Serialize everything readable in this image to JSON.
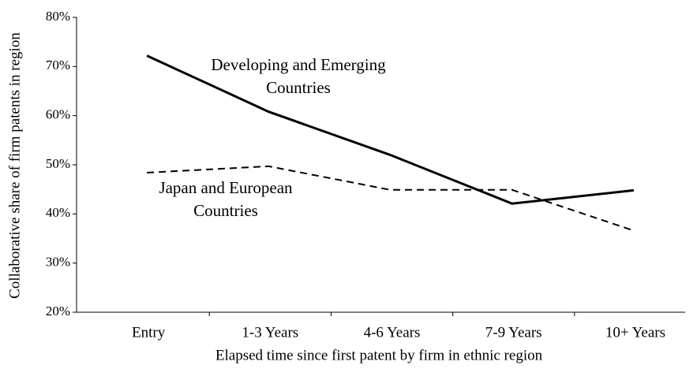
{
  "chart_data": {
    "type": "line",
    "x_label": "Elapsed time since first patent by firm in ethnic region",
    "y_label": "Collaborative share of firm patents in region",
    "categories": [
      "Entry",
      "1-3 Years",
      "4-6 Years",
      "7-9 Years",
      "10+ Years"
    ],
    "series": [
      {
        "color": "#000000",
        "dashed": false,
        "values": [
          72.2,
          60.8,
          52.0,
          42.1,
          44.8
        ]
      },
      {
        "color": "#000000",
        "dashed": true,
        "values": [
          48.4,
          49.7,
          44.9,
          44.9,
          36.6
        ]
      }
    ],
    "annotations": [
      {
        "lines": [
          "Developing and Emerging",
          "Countries"
        ]
      },
      {
        "lines": [
          "Japan and European",
          "Countries"
        ]
      }
    ],
    "ylim": [
      20,
      80
    ],
    "yticks": [
      {
        "value": 20,
        "label": "20%"
      },
      {
        "value": 30,
        "label": "30%"
      },
      {
        "value": 40,
        "label": "40%"
      },
      {
        "value": 50,
        "label": "50%"
      },
      {
        "value": 60,
        "label": "60%"
      },
      {
        "value": 70,
        "label": "70%"
      },
      {
        "value": 80,
        "label": "80%"
      }
    ],
    "grid": false
  }
}
